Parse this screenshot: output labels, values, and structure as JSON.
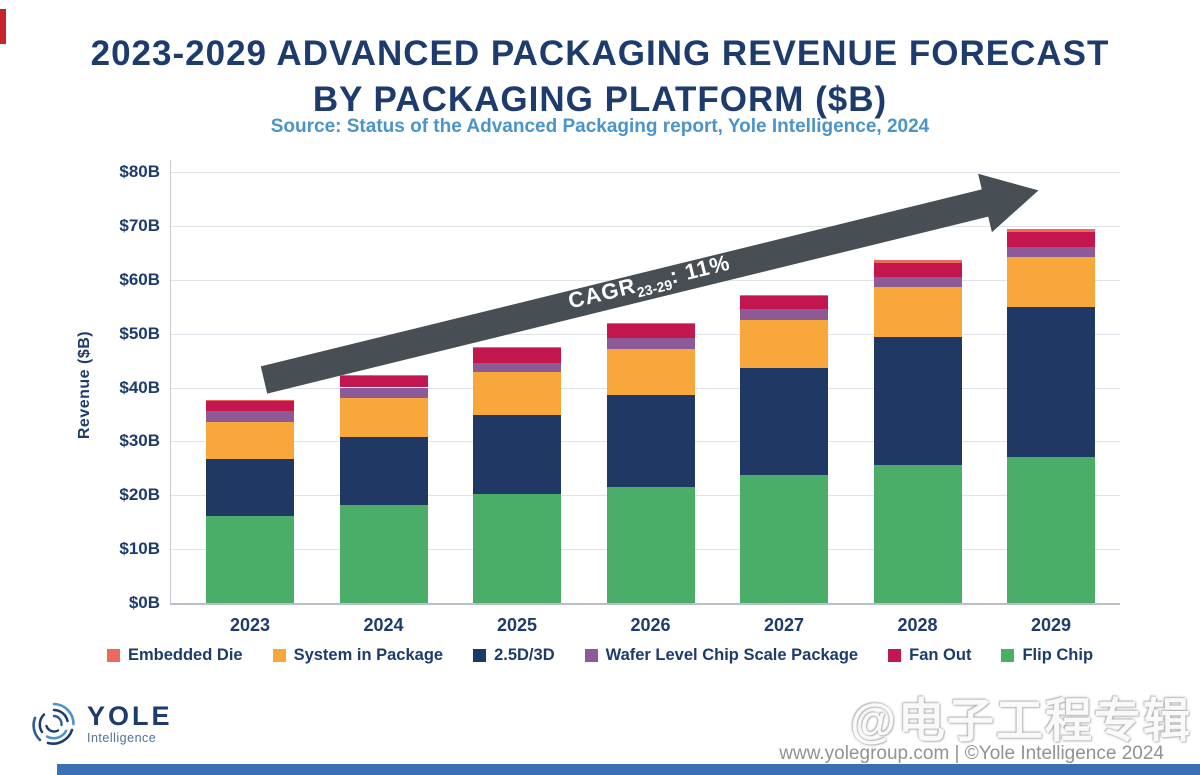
{
  "title": {
    "line1": "2023-2029 ADVANCED PACKAGING REVENUE FORECAST",
    "line2": "BY PACKAGING PLATFORM ($B)"
  },
  "subtitle": "Source: Status of the Advanced Packaging report, Yole Intelligence, 2024",
  "chart_data": {
    "type": "bar",
    "stacked": true,
    "title": "2023-2029 Advanced Packaging Revenue Forecast by Packaging Platform ($B)",
    "xlabel": "",
    "ylabel": "Revenue ($B)",
    "ylim": [
      0,
      80
    ],
    "ytick_step": 10,
    "ytick_labels": [
      "$0B",
      "$10B",
      "$20B",
      "$30B",
      "$40B",
      "$50B",
      "$60B",
      "$70B",
      "$80B"
    ],
    "grid": true,
    "legend_position": "bottom",
    "categories": [
      "2023",
      "2024",
      "2025",
      "2026",
      "2027",
      "2028",
      "2029"
    ],
    "series": [
      {
        "name": "Flip Chip",
        "color": "#4bae68",
        "values": [
          16.1,
          18.2,
          20.3,
          21.6,
          23.7,
          25.6,
          27.1
        ]
      },
      {
        "name": "2.5D/3D",
        "color": "#203864",
        "values": [
          10.6,
          12.7,
          14.6,
          17.0,
          19.9,
          23.8,
          27.8
        ]
      },
      {
        "name": "System in Package",
        "color": "#f8a73b",
        "values": [
          6.9,
          7.2,
          8.0,
          8.6,
          8.9,
          9.3,
          9.3
        ]
      },
      {
        "name": "Wafer Level Chip Scale Package",
        "color": "#8c5a96",
        "values": [
          2.0,
          1.9,
          1.7,
          1.9,
          2.0,
          1.8,
          1.9
        ]
      },
      {
        "name": "Fan Out",
        "color": "#c3164e",
        "values": [
          1.9,
          2.3,
          2.8,
          2.6,
          2.5,
          2.7,
          2.8
        ]
      },
      {
        "name": "Embedded Die",
        "color": "#ec6a5c",
        "values": [
          0.1,
          0.1,
          0.1,
          0.2,
          0.2,
          0.5,
          0.6
        ]
      }
    ],
    "totals": [
      37.6,
      42.4,
      47.5,
      51.9,
      57.2,
      63.7,
      69.5
    ],
    "legend": [
      "Embedded Die",
      "System in Package",
      "2.5D/3D",
      "Wafer Level Chip Scale Package",
      "Fan Out",
      "Flip Chip"
    ],
    "annotation": {
      "prefix": "CAGR",
      "sub": "23-29",
      "suffix": ": 11%",
      "arrow_color": "#474e54",
      "text_color": "#ffffff"
    }
  },
  "footer": {
    "logo_name": "YOLE",
    "logo_sub": "Intelligence",
    "watermark": "@电子工程专辑",
    "credit": "www.yolegroup.com | ©Yole Intelligence 2024"
  },
  "colors": {
    "title_navy": "#1e3b6d",
    "subtitle_blue": "#4a94cc",
    "grid": "#e0e3e9",
    "arrow_gray": "#474e54",
    "credit_gray": "#8f9296",
    "bottom_bar_blue": "#3b70b7"
  }
}
